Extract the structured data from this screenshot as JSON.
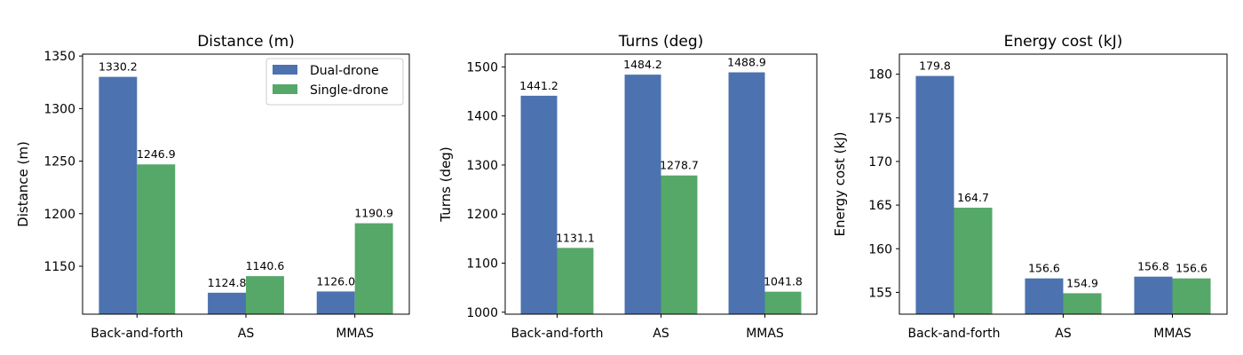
{
  "chart_data": [
    {
      "type": "bar",
      "title": "Distance (m)",
      "xlabel": "",
      "ylabel": "Distance (m)",
      "categories": [
        "Back-and-forth",
        "AS",
        "MMAS"
      ],
      "series": [
        {
          "name": "Dual-drone",
          "values": [
            1330.2,
            1124.8,
            1126.0
          ],
          "labels": [
            "1330.2",
            "1124.8",
            "1126.0"
          ]
        },
        {
          "name": "Single-drone",
          "values": [
            1246.9,
            1140.6,
            1190.9
          ],
          "labels": [
            "1246.9",
            "1140.6",
            "1190.9"
          ]
        }
      ],
      "ylim": [
        1104.4,
        1351.8
      ],
      "yticks": [
        1150,
        1200,
        1250,
        1300,
        1350
      ],
      "legend": "top-right",
      "grid": false
    },
    {
      "type": "bar",
      "title": "Turns (deg)",
      "xlabel": "",
      "ylabel": "Turns (deg)",
      "categories": [
        "Back-and-forth",
        "AS",
        "MMAS"
      ],
      "series": [
        {
          "name": "Dual-drone",
          "values": [
            1441.2,
            1484.2,
            1488.9
          ],
          "labels": [
            "1441.2",
            "1484.2",
            "1488.9"
          ]
        },
        {
          "name": "Single-drone",
          "values": [
            1131.1,
            1278.7,
            1041.8
          ],
          "labels": [
            "1131.1",
            "1278.7",
            "1041.8"
          ]
        }
      ],
      "ylim": [
        996,
        1526
      ],
      "yticks": [
        1000,
        1100,
        1200,
        1300,
        1400,
        1500
      ],
      "grid": false
    },
    {
      "type": "bar",
      "title": "Energy cost (kJ)",
      "xlabel": "",
      "ylabel": "Energy cost (kJ)",
      "categories": [
        "Back-and-forth",
        "AS",
        "MMAS"
      ],
      "series": [
        {
          "name": "Dual-drone",
          "values": [
            179.8,
            156.6,
            156.8
          ],
          "labels": [
            "179.8",
            "156.6",
            "156.8"
          ]
        },
        {
          "name": "Single-drone",
          "values": [
            164.7,
            154.9,
            156.6
          ],
          "labels": [
            "164.7",
            "154.9",
            "156.6"
          ]
        }
      ],
      "ylim": [
        152.5,
        182.3
      ],
      "yticks": [
        155,
        160,
        165,
        170,
        175,
        180
      ],
      "grid": false
    }
  ],
  "colors": {
    "Dual-drone": "#4c72b0",
    "Single-drone": "#55a868"
  }
}
